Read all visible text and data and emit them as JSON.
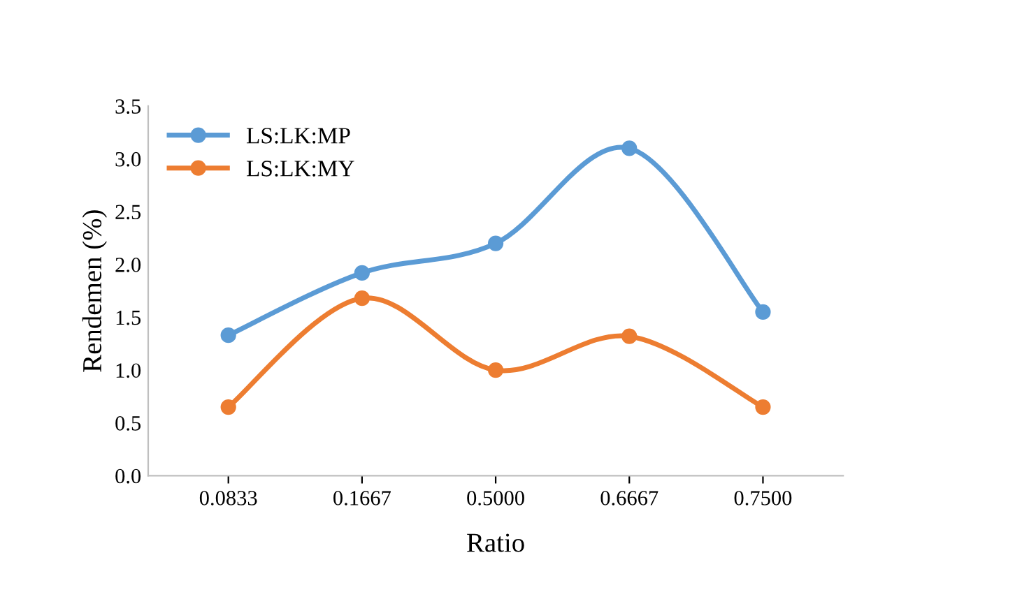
{
  "chart_data": {
    "type": "line",
    "xlabel": "Ratio",
    "ylabel": "Rendemen (%)",
    "categories": [
      "0.0833",
      "0.1667",
      "0.5000",
      "0.6667",
      "0.7500"
    ],
    "series": [
      {
        "name": "LS:LK:MP",
        "color": "#5b9bd5",
        "values": [
          1.33,
          1.92,
          2.2,
          3.1,
          1.55
        ]
      },
      {
        "name": "LS:LK:MY",
        "color": "#ed7d31",
        "values": [
          0.65,
          1.68,
          1.0,
          1.32,
          0.65
        ]
      }
    ],
    "ylim": [
      0,
      3.5
    ],
    "yticks": [
      {
        "value": 0,
        "label": "0.0"
      },
      {
        "value": 0.5,
        "label": "0.5"
      },
      {
        "value": 1,
        "label": "1.0"
      },
      {
        "value": 1.5,
        "label": "1.5"
      },
      {
        "value": 2,
        "label": "2.0"
      },
      {
        "value": 2.5,
        "label": "2.5"
      },
      {
        "value": 3,
        "label": "3.0"
      },
      {
        "value": 3.5,
        "label": "3.5"
      }
    ],
    "grid": false,
    "legend": "top left",
    "marker": "circle",
    "line_style": "solid"
  }
}
